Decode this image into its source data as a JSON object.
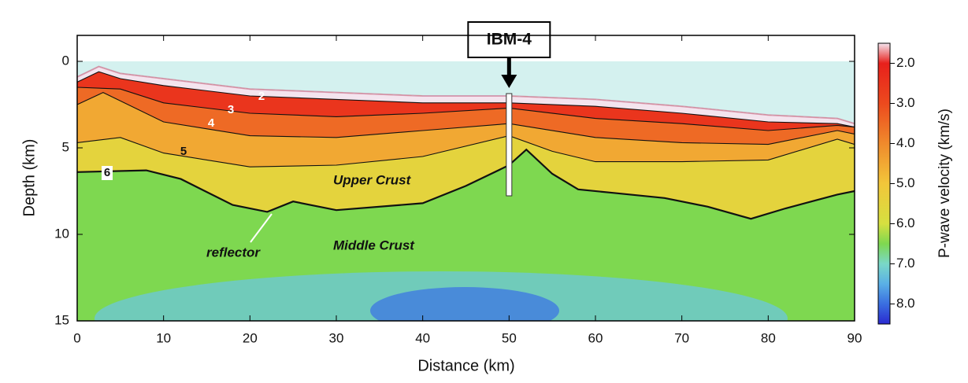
{
  "chart_data": {
    "type": "velocity-section",
    "title": "IBM-4",
    "xlabel": "Distance (km)",
    "ylabel": "Depth (km)",
    "colorbar_label": "P-wave velocity (km/s)",
    "xlim": [
      0,
      90
    ],
    "xticks": [
      0,
      10,
      20,
      30,
      40,
      50,
      60,
      70,
      80,
      90
    ],
    "ylim": [
      -1.5,
      15
    ],
    "yticks": [
      0,
      5,
      10,
      15
    ],
    "y_inverted": true,
    "clim": [
      1.5,
      8.5
    ],
    "cticks": [
      {
        "value": 2,
        "label": "2.0"
      },
      {
        "value": 3,
        "label": "3.0"
      },
      {
        "value": 4,
        "label": "4.0"
      },
      {
        "value": 5,
        "label": "5.0"
      },
      {
        "value": 6,
        "label": "6.0"
      },
      {
        "value": 7,
        "label": "7.0"
      },
      {
        "value": 8,
        "label": "8.0"
      }
    ],
    "colorscale": [
      [
        1.5,
        "#f4e4ee"
      ],
      [
        2,
        "#e8201c"
      ],
      [
        3,
        "#ec4a1e"
      ],
      [
        4,
        "#f08a2c"
      ],
      [
        5,
        "#f2c63a"
      ],
      [
        6,
        "#d6e040"
      ],
      [
        6.5,
        "#7ed850"
      ],
      [
        7,
        "#7ad8c8"
      ],
      [
        7.5,
        "#5ab0e6"
      ],
      [
        8,
        "#3a6ee0"
      ],
      [
        8.5,
        "#2a2ad0"
      ]
    ],
    "water_color": "#d4f1ef",
    "borehole_x": 50,
    "seafloor": {
      "x": [
        0,
        2.5,
        5,
        10,
        20,
        30,
        40,
        50,
        60,
        70,
        80,
        88,
        90
      ],
      "values": [
        0.9,
        0.3,
        0.7,
        1.0,
        1.6,
        1.8,
        2.0,
        2.0,
        2.2,
        2.6,
        3.1,
        3.3,
        3.6
      ]
    },
    "series": [
      {
        "name": "2",
        "velocity": 2,
        "x": [
          0,
          2.5,
          5,
          10,
          20,
          30,
          40,
          50,
          60,
          70,
          80,
          88,
          90
        ],
        "values": [
          1.2,
          0.6,
          1.0,
          1.4,
          2.0,
          2.2,
          2.4,
          2.4,
          2.6,
          3.0,
          3.5,
          3.6,
          3.8
        ]
      },
      {
        "name": "3",
        "velocity": 3,
        "x": [
          0,
          5,
          10,
          20,
          30,
          40,
          50,
          60,
          70,
          80,
          88,
          90
        ],
        "values": [
          1.5,
          1.6,
          2.4,
          3.0,
          3.2,
          3.0,
          2.7,
          3.3,
          3.6,
          4.0,
          3.7,
          3.8
        ]
      },
      {
        "name": "4",
        "velocity": 4,
        "x": [
          0,
          3,
          10,
          20,
          30,
          40,
          50,
          60,
          70,
          80,
          88,
          90
        ],
        "values": [
          2.5,
          1.8,
          3.5,
          4.3,
          4.4,
          4.0,
          3.6,
          4.4,
          4.7,
          4.8,
          4.0,
          4.2
        ]
      },
      {
        "name": "5",
        "velocity": 5,
        "x": [
          0,
          5,
          10,
          20,
          30,
          40,
          50,
          55,
          60,
          70,
          80,
          88,
          90
        ],
        "values": [
          4.7,
          4.4,
          5.3,
          6.1,
          6.0,
          5.5,
          4.3,
          5.2,
          5.8,
          5.8,
          5.7,
          4.5,
          4.8
        ]
      },
      {
        "name": "6",
        "velocity": 6,
        "x": [
          0,
          8,
          12,
          18,
          22,
          25,
          30,
          40,
          45,
          50,
          52,
          55,
          58,
          62,
          68,
          73,
          78,
          82,
          88,
          90
        ],
        "values": [
          6.4,
          6.3,
          6.8,
          8.3,
          8.7,
          8.1,
          8.6,
          8.2,
          7.2,
          6.0,
          5.1,
          6.5,
          7.4,
          7.6,
          7.9,
          8.4,
          9.1,
          8.5,
          7.7,
          7.5
        ]
      }
    ],
    "annotations": [
      "Upper Crust",
      "Middle Crust",
      "reflector"
    ]
  }
}
